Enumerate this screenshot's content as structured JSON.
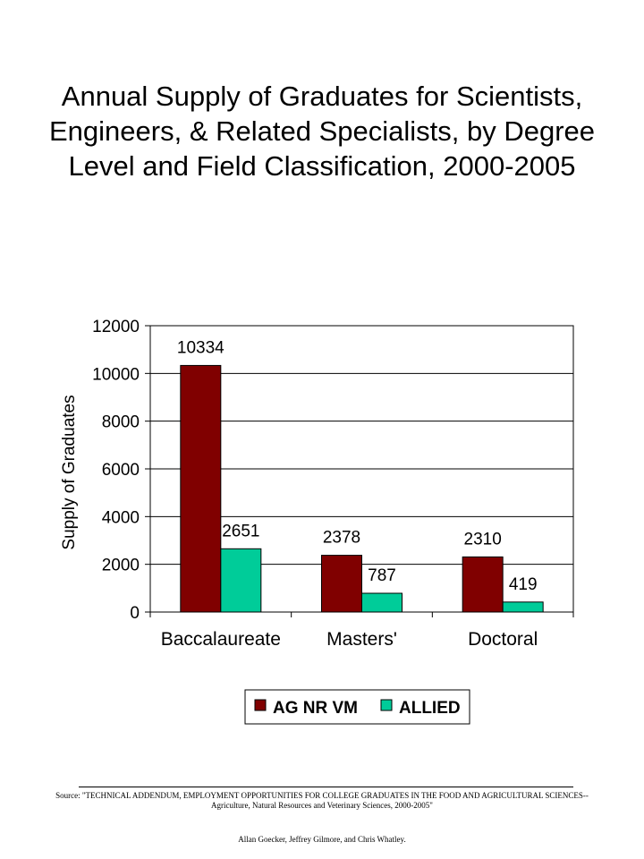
{
  "chart_data": {
    "type": "bar",
    "title": "Annual Supply of Graduates for Scientists, Engineers, & Related Specialists, by Degree Level and Field Classification, 2000-2005",
    "xlabel": "",
    "ylabel": "Supply of Graduates",
    "categories": [
      "Baccalaureate",
      "Masters'",
      "Doctoral"
    ],
    "series": [
      {
        "name": "AG NR VM",
        "values": [
          10334,
          2378,
          2310
        ],
        "color": "#800000"
      },
      {
        "name": "ALLIED",
        "values": [
          2651,
          787,
          419
        ],
        "color": "#00CC99"
      }
    ],
    "ylim": [
      0,
      12000
    ],
    "yticks": [
      0,
      2000,
      4000,
      6000,
      8000,
      10000,
      12000
    ],
    "grid": true,
    "legend": "bottom",
    "data_labels": true
  },
  "footer": {
    "source": "Source:  \"TECHNICAL ADDENDUM, EMPLOYMENT OPPORTUNITIES FOR COLLEGE GRADUATES IN THE FOOD AND AGRICULTURAL SCIENCES--Agriculture, Natural Resources and Veterinary Sciences, 2000-2005\"",
    "authors": "Allan Goecker, Jeffrey Gilmore, and Chris Whatley."
  }
}
